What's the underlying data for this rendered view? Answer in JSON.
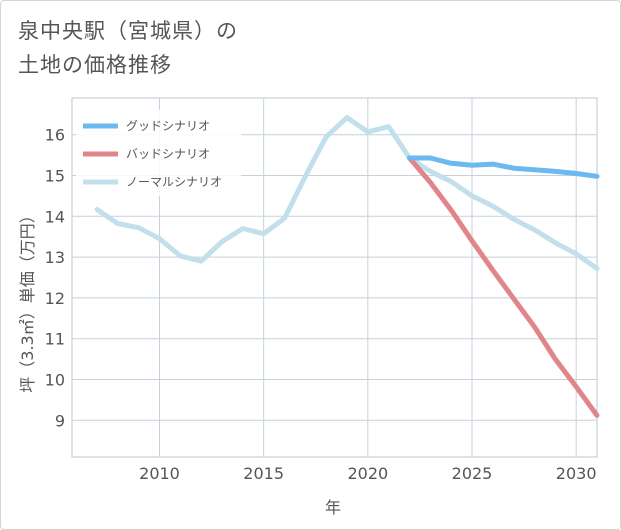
{
  "title": {
    "line1": "泉中央駅（宮城県）の",
    "line2": "土地の価格推移"
  },
  "chart_data": {
    "type": "line",
    "xlabel": "年",
    "ylabel": "坪（3.3㎡）単価（万円）",
    "xlim": [
      2005.8,
      2031
    ],
    "ylim": [
      8.1,
      16.9
    ],
    "xticks": [
      2010,
      2015,
      2020,
      2025,
      2030
    ],
    "yticks": [
      9,
      10,
      11,
      12,
      13,
      14,
      15,
      16
    ],
    "grid": true,
    "legend_position": "top-left",
    "series": [
      {
        "name": "グッドシナリオ",
        "color": "#6cb9ef",
        "x": [
          2022,
          2023,
          2024,
          2025,
          2026,
          2027,
          2028,
          2029,
          2030,
          2031
        ],
        "values": [
          15.43,
          15.43,
          15.3,
          15.25,
          15.28,
          15.18,
          15.14,
          15.1,
          15.05,
          14.98
        ]
      },
      {
        "name": "バッドシナリオ",
        "color": "#e0868b",
        "x": [
          2022,
          2023,
          2024,
          2025,
          2026,
          2027,
          2028,
          2029,
          2030,
          2031
        ],
        "values": [
          15.43,
          14.83,
          14.15,
          13.4,
          12.68,
          11.98,
          11.29,
          10.5,
          9.82,
          9.12
        ]
      },
      {
        "name": "ノーマルシナリオ",
        "color": "#c2dfec",
        "x": [
          2007,
          2008,
          2009,
          2010,
          2011,
          2012,
          2013,
          2014,
          2015,
          2016,
          2017,
          2018,
          2019,
          2020,
          2021,
          2022,
          2023,
          2024,
          2025,
          2026,
          2027,
          2028,
          2029,
          2030,
          2031
        ],
        "values": [
          14.17,
          13.82,
          13.72,
          13.45,
          13.03,
          12.9,
          13.38,
          13.7,
          13.57,
          13.95,
          14.98,
          15.95,
          16.42,
          16.07,
          16.2,
          15.43,
          15.1,
          14.85,
          14.5,
          14.25,
          13.93,
          13.67,
          13.35,
          13.08,
          12.72
        ]
      }
    ]
  }
}
